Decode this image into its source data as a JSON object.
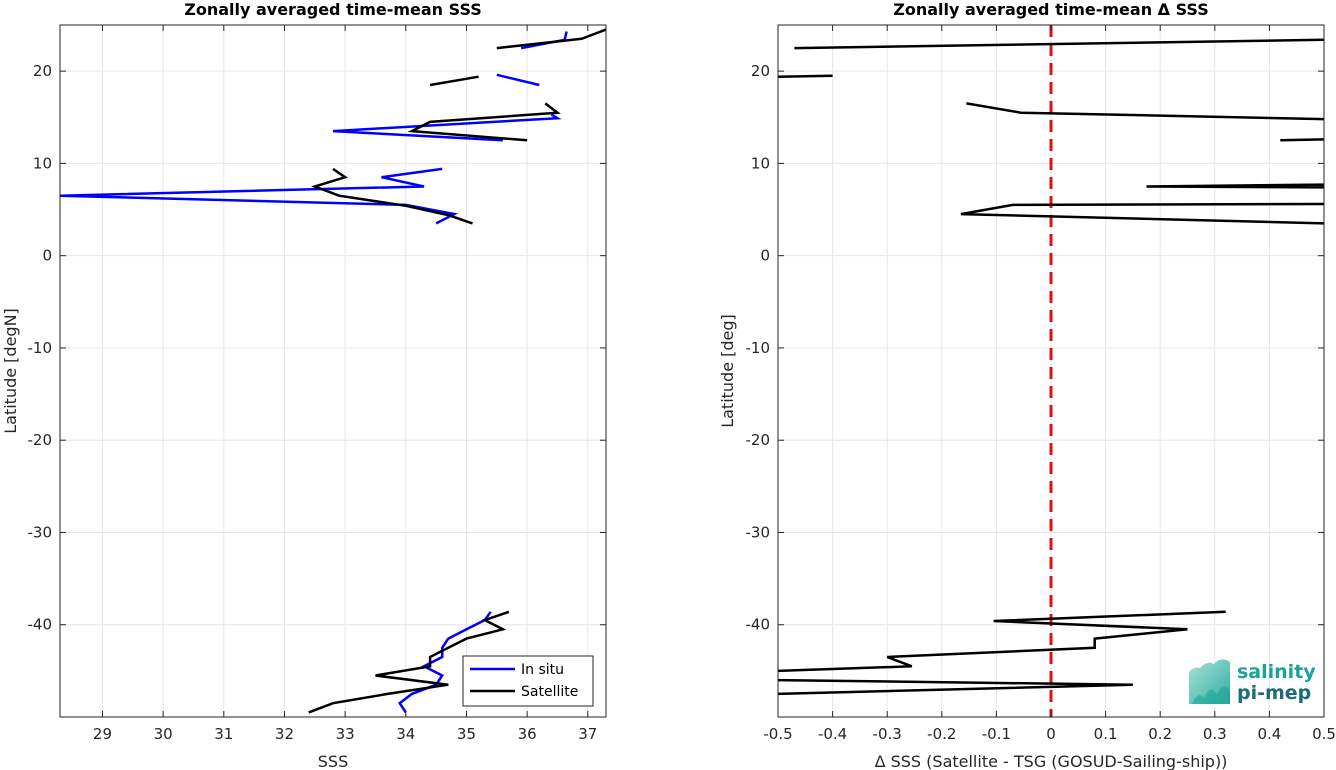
{
  "chart_data": [
    {
      "type": "line",
      "title": "Zonally averaged time-mean SSS",
      "xlabel": "SSS",
      "ylabel": "Latitude [degN]",
      "xlim": [
        28.3,
        37.3
      ],
      "ylim": [
        -50,
        25
      ],
      "xticks": [
        "29",
        "30",
        "31",
        "32",
        "33",
        "34",
        "35",
        "36",
        "37"
      ],
      "yticks": [
        "20",
        "10",
        "0",
        "-10",
        "-20",
        "-30",
        "-40"
      ],
      "grid": true,
      "legend": {
        "position": "bottom-right",
        "entries": [
          "In situ",
          "Satellite"
        ]
      },
      "series": [
        {
          "name": "In situ",
          "color": "#0000ff",
          "segments": [
            [
              [
                36.65,
                24.3
              ],
              [
                36.62,
                23.4
              ],
              [
                35.9,
                22.5
              ]
            ],
            [
              [
                35.5,
                19.6
              ],
              [
                36.2,
                18.5
              ]
            ],
            [
              [
                36.4,
                15.3
              ],
              [
                36.5,
                14.9
              ],
              [
                32.8,
                13.5
              ],
              [
                35.6,
                12.5
              ]
            ],
            [
              [
                34.6,
                9.4
              ],
              [
                33.6,
                8.5
              ],
              [
                34.3,
                7.5
              ],
              [
                28.3,
                6.5
              ],
              [
                34.0,
                5.5
              ],
              [
                34.8,
                4.5
              ],
              [
                34.5,
                3.5
              ]
            ],
            [
              [
                35.4,
                -38.6
              ],
              [
                35.3,
                -39.5
              ],
              [
                35.0,
                -40.5
              ],
              [
                34.7,
                -41.5
              ],
              [
                34.6,
                -42.5
              ],
              [
                34.6,
                -43.5
              ],
              [
                34.3,
                -44.5
              ],
              [
                34.6,
                -45.5
              ],
              [
                34.5,
                -46.5
              ],
              [
                34.1,
                -47.5
              ],
              [
                33.9,
                -48.5
              ],
              [
                34.0,
                -49.5
              ]
            ]
          ]
        },
        {
          "name": "Satellite",
          "color": "#000000",
          "segments": [
            [
              [
                37.3,
                24.5
              ],
              [
                36.9,
                23.5
              ],
              [
                35.5,
                22.5
              ]
            ],
            [
              [
                34.4,
                18.5
              ],
              [
                35.2,
                19.4
              ]
            ],
            [
              [
                36.3,
                16.5
              ],
              [
                36.5,
                15.5
              ],
              [
                34.4,
                14.5
              ],
              [
                34.1,
                13.5
              ],
              [
                36.0,
                12.5
              ]
            ],
            [
              [
                32.8,
                9.4
              ],
              [
                33.0,
                8.5
              ],
              [
                32.5,
                7.5
              ],
              [
                32.9,
                6.5
              ],
              [
                34.0,
                5.4
              ],
              [
                34.7,
                4.4
              ],
              [
                35.1,
                3.5
              ]
            ],
            [
              [
                35.7,
                -38.6
              ],
              [
                35.3,
                -39.5
              ],
              [
                35.6,
                -40.5
              ],
              [
                35.0,
                -41.5
              ],
              [
                34.7,
                -42.5
              ],
              [
                34.4,
                -43.5
              ],
              [
                34.4,
                -44.5
              ],
              [
                33.5,
                -45.5
              ],
              [
                34.7,
                -46.5
              ],
              [
                33.7,
                -47.5
              ],
              [
                32.8,
                -48.5
              ],
              [
                32.4,
                -49.5
              ]
            ]
          ]
        }
      ]
    },
    {
      "type": "line",
      "title": "Zonally averaged time-mean Δ SSS",
      "xlabel": "Δ SSS (Satellite - TSG (GOSUD-Sailing-ship))",
      "ylabel": "Latitude [deg]",
      "xlim": [
        -0.5,
        0.5
      ],
      "ylim": [
        -50,
        25
      ],
      "xticks": [
        "-0.5",
        "-0.4",
        "-0.3",
        "-0.2",
        "-0.1",
        "0",
        "0.1",
        "0.2",
        "0.3",
        "0.4",
        "0.5"
      ],
      "yticks": [
        "20",
        "10",
        "0",
        "-10",
        "-20",
        "-30",
        "-40"
      ],
      "grid": true,
      "zero_line": {
        "x": 0,
        "color": "#dd1111",
        "style": "dashed"
      },
      "series": [
        {
          "color": "#000000",
          "segments": [
            [
              [
                -0.47,
                22.5
              ],
              [
                0.5,
                23.4
              ]
            ],
            [
              [
                -0.5,
                19.4
              ],
              [
                -0.4,
                19.5
              ]
            ],
            [
              [
                -0.155,
                16.5
              ],
              [
                -0.055,
                15.5
              ],
              [
                0.5,
                14.8
              ]
            ],
            [
              [
                0.42,
                12.5
              ],
              [
                0.5,
                12.6
              ]
            ],
            [
              [
                0.175,
                7.5
              ],
              [
                0.5,
                7.7
              ],
              [
                0.5,
                7.4
              ],
              [
                0.175,
                7.5
              ]
            ],
            [
              [
                0.5,
                5.6
              ],
              [
                -0.07,
                5.5
              ],
              [
                -0.165,
                4.5
              ],
              [
                0.5,
                3.5
              ]
            ],
            [
              [
                0.32,
                -38.6
              ],
              [
                -0.105,
                -39.6
              ],
              [
                0.25,
                -40.5
              ],
              [
                0.08,
                -41.5
              ],
              [
                0.08,
                -42.5
              ],
              [
                -0.3,
                -43.5
              ],
              [
                -0.255,
                -44.5
              ],
              [
                -0.5,
                -45.0
              ]
            ],
            [
              [
                -0.5,
                -46.0
              ],
              [
                0.15,
                -46.5
              ],
              [
                -0.5,
                -47.5
              ]
            ]
          ]
        }
      ]
    }
  ],
  "logo": {
    "line1": "salinity",
    "line2": "pi-mep"
  }
}
